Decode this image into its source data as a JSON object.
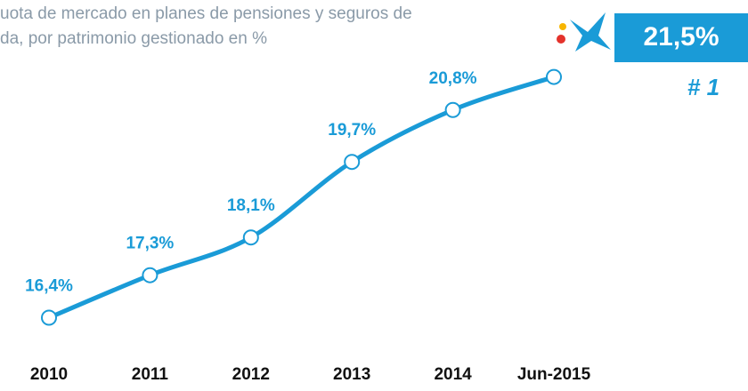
{
  "chart_data": {
    "type": "line",
    "title_lines": [
      "uota de mercado en planes de pensiones y seguros de",
      "da, por patrimonio gestionado en %"
    ],
    "categories": [
      "2010",
      "2011",
      "2012",
      "2013",
      "2014",
      "Jun-2015"
    ],
    "series": [
      {
        "name": "Cuota",
        "color": "#1a9bd7",
        "values": [
          16.4,
          17.3,
          18.1,
          19.7,
          20.8,
          21.5
        ],
        "value_labels": [
          "16,4%",
          "17,3%",
          "18,1%",
          "19,7%",
          "20,8%",
          "21,5%"
        ]
      }
    ],
    "ylim": [
      15.6,
      22
    ],
    "annotation": "# 1"
  }
}
